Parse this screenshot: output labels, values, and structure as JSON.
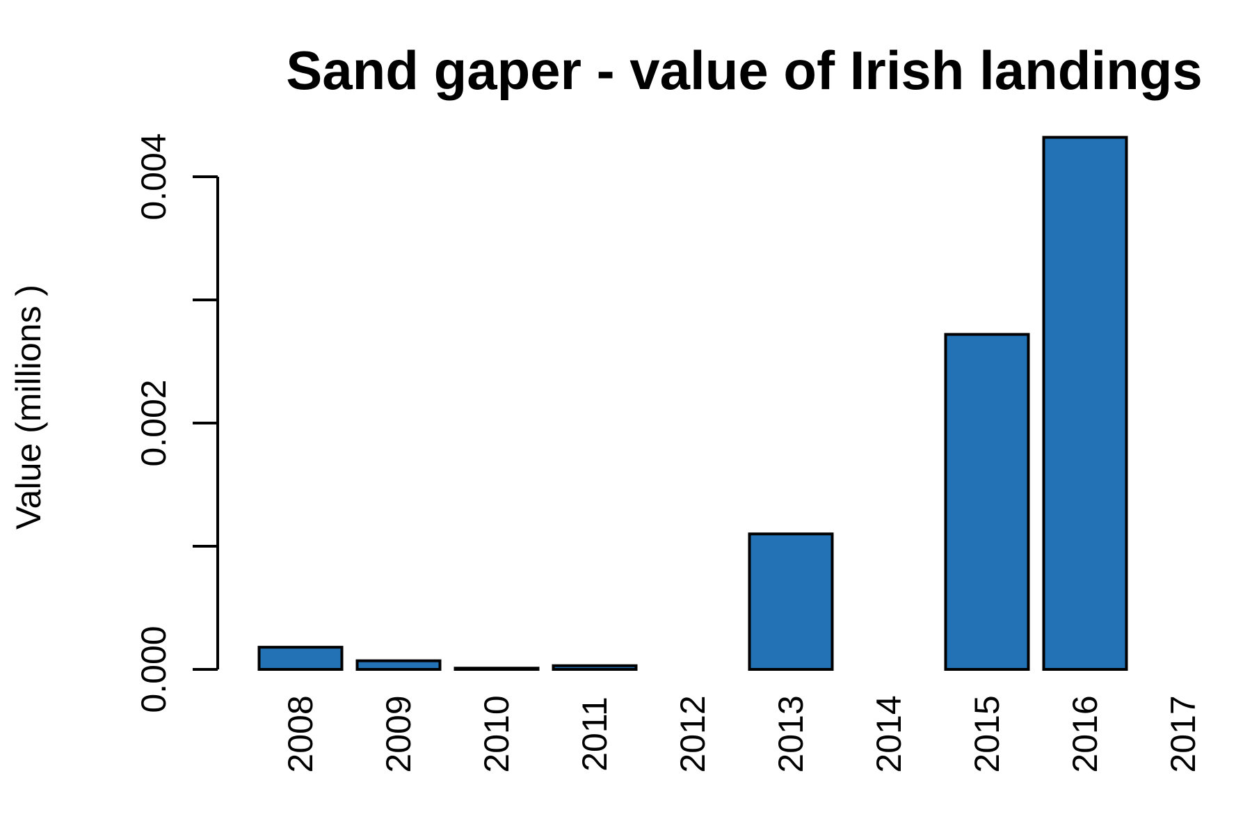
{
  "chart_data": {
    "type": "bar",
    "title": "Sand gaper - value of Irish landings",
    "xlabel": "",
    "ylabel": "Value (millions )",
    "categories": [
      "2008",
      "2009",
      "2010",
      "2011",
      "2012",
      "2013",
      "2014",
      "2015",
      "2016",
      "2017"
    ],
    "values": [
      0.00018,
      7e-05,
      1e-05,
      3e-05,
      0,
      0.0011,
      0,
      0.00272,
      0.00432,
      0
    ],
    "ylim": [
      0,
      0.0045
    ],
    "y_ticks": [
      0,
      0.001,
      0.002,
      0.003,
      0.004
    ],
    "y_tick_labels": [
      "0.000",
      "",
      "0.002",
      "",
      "0.004"
    ],
    "bar_color": "#2372b5",
    "grid": false
  }
}
